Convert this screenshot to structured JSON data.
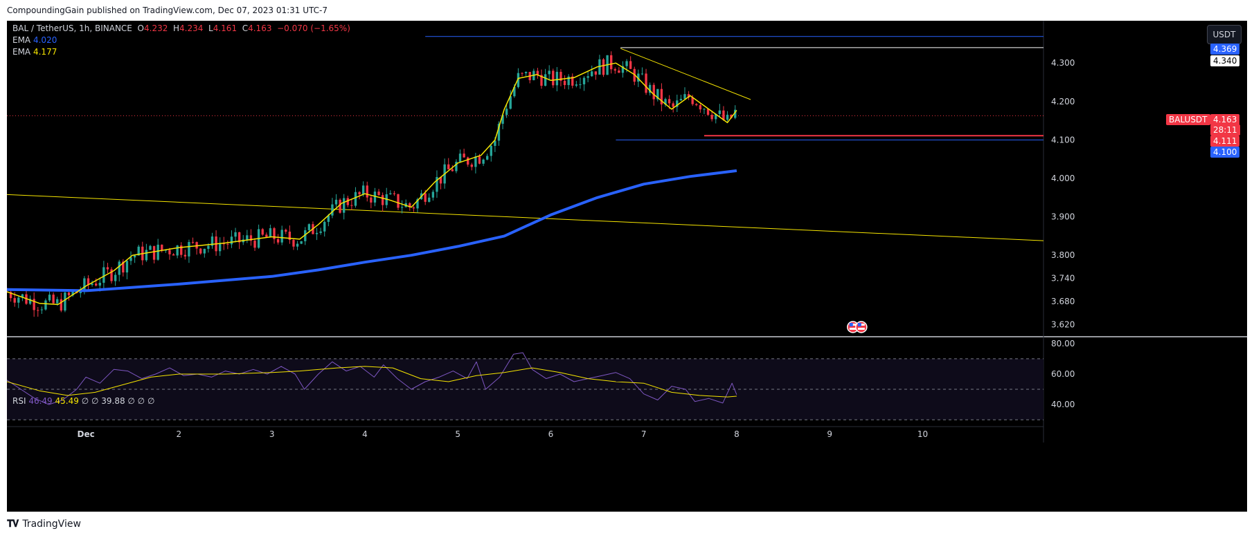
{
  "publisher_line": "CompoundingGain published on TradingView.com, Dec 07, 2023 01:31 UTC-7",
  "legend": {
    "pair": "BAL / TetherUS, 1h, BINANCE",
    "o_label": "O",
    "o": "4.232",
    "h_label": "H",
    "h": "4.234",
    "l_label": "L",
    "l": "4.161",
    "c_label": "C",
    "c": "4.163",
    "change": "−0.070 (−1.65%)",
    "ema1_label": "EMA",
    "ema1": "4.020",
    "ema2_label": "EMA",
    "ema2": "4.177"
  },
  "rsi_legend": {
    "label": "RSI",
    "v1": "46.49",
    "v2": "45.49",
    "rest": "∅ ∅ 39.88 ∅ ∅ ∅"
  },
  "currency_button": "USDT",
  "price_pills": {
    "top": "4.369",
    "white": "4.340",
    "symbol": "BALUSDT",
    "last": "4.163",
    "countdown": "28:11",
    "red_level": "4.111",
    "blue_level": "4.100"
  },
  "colors": {
    "up": "#26a69a",
    "down": "#f23645",
    "ema_fast": "#f7e600",
    "ema_slow": "#2962ff",
    "rsi": "#7e57c2",
    "rsi_ma": "#f7e600",
    "level_blue": "#2962ff",
    "level_red": "#f23645"
  },
  "footer_brand": "TradingView",
  "chart_data": [
    {
      "type": "candlestick",
      "x_ticks": [
        "Dec",
        "2",
        "3",
        "4",
        "5",
        "6",
        "7",
        "8",
        "9",
        "10"
      ],
      "y_ticks": [
        "4.300",
        "4.200",
        "4.100",
        "4.000",
        "3.900",
        "3.800",
        "3.740",
        "3.680",
        "3.620"
      ],
      "y_tick_values": [
        4.3,
        4.2,
        4.1,
        4.0,
        3.9,
        3.8,
        3.74,
        3.68,
        3.62
      ],
      "ylim": [
        3.59,
        4.41
      ],
      "xlim": [
        -0.85,
        10.3
      ],
      "ema_slow": [
        {
          "t": -0.85,
          "v": 3.711
        },
        {
          "t": 0.0,
          "v": 3.708
        },
        {
          "t": 1.0,
          "v": 3.725
        },
        {
          "t": 2.0,
          "v": 3.745
        },
        {
          "t": 2.5,
          "v": 3.762
        },
        {
          "t": 3.0,
          "v": 3.782
        },
        {
          "t": 3.5,
          "v": 3.8
        },
        {
          "t": 4.0,
          "v": 3.823
        },
        {
          "t": 4.5,
          "v": 3.85
        },
        {
          "t": 5.0,
          "v": 3.905
        },
        {
          "t": 5.5,
          "v": 3.95
        },
        {
          "t": 6.0,
          "v": 3.985
        },
        {
          "t": 6.5,
          "v": 4.005
        },
        {
          "t": 7.0,
          "v": 4.02
        }
      ],
      "ema_fast": [
        {
          "t": -0.85,
          "v": 3.705
        },
        {
          "t": -0.5,
          "v": 3.675
        },
        {
          "t": -0.3,
          "v": 3.672
        },
        {
          "t": 0.0,
          "v": 3.72
        },
        {
          "t": 0.3,
          "v": 3.76
        },
        {
          "t": 0.5,
          "v": 3.8
        },
        {
          "t": 1.0,
          "v": 3.82
        },
        {
          "t": 1.5,
          "v": 3.832
        },
        {
          "t": 2.0,
          "v": 3.848
        },
        {
          "t": 2.3,
          "v": 3.842
        },
        {
          "t": 2.5,
          "v": 3.88
        },
        {
          "t": 2.75,
          "v": 3.935
        },
        {
          "t": 3.0,
          "v": 3.96
        },
        {
          "t": 3.25,
          "v": 3.945
        },
        {
          "t": 3.5,
          "v": 3.925
        },
        {
          "t": 3.75,
          "v": 3.99
        },
        {
          "t": 4.0,
          "v": 4.04
        },
        {
          "t": 4.25,
          "v": 4.06
        },
        {
          "t": 4.4,
          "v": 4.1
        },
        {
          "t": 4.5,
          "v": 4.18
        },
        {
          "t": 4.65,
          "v": 4.26
        },
        {
          "t": 4.85,
          "v": 4.27
        },
        {
          "t": 5.0,
          "v": 4.255
        },
        {
          "t": 5.25,
          "v": 4.262
        },
        {
          "t": 5.5,
          "v": 4.29
        },
        {
          "t": 5.7,
          "v": 4.3
        },
        {
          "t": 5.9,
          "v": 4.27
        },
        {
          "t": 6.1,
          "v": 4.22
        },
        {
          "t": 6.3,
          "v": 4.18
        },
        {
          "t": 6.5,
          "v": 4.215
        },
        {
          "t": 6.7,
          "v": 4.18
        },
        {
          "t": 6.9,
          "v": 4.145
        },
        {
          "t": 7.0,
          "v": 4.177
        }
      ],
      "levels": [
        {
          "value": 4.369,
          "from_t": 3.65,
          "to_t": 10.3,
          "color": "#2962ff"
        },
        {
          "value": 4.34,
          "from_t": 5.75,
          "to_t": 10.3,
          "color": "#ffffff"
        },
        {
          "value": 4.111,
          "from_t": 6.65,
          "to_t": 10.3,
          "color": "#f23645"
        },
        {
          "value": 4.1,
          "from_t": 5.7,
          "to_t": 10.3,
          "color": "#2962ff"
        }
      ],
      "trendlines": [
        {
          "from": {
            "t": 5.75,
            "v": 4.338
          },
          "to": {
            "t": 7.15,
            "v": 4.205
          },
          "color": "#f7e600"
        },
        {
          "from": {
            "t": -0.85,
            "v": 3.958
          },
          "to": {
            "t": 10.3,
            "v": 3.838
          },
          "color": "#f7e600"
        }
      ],
      "last_price": 4.163
    },
    {
      "type": "line",
      "name": "RSI",
      "y_ticks": [
        "80.00",
        "60.00",
        "40.00"
      ],
      "y_tick_values": [
        80,
        60,
        40
      ],
      "ylim": [
        26,
        84
      ],
      "bands": [
        70,
        50,
        30
      ],
      "rsi": [
        {
          "t": -0.85,
          "v": 56
        },
        {
          "t": -0.7,
          "v": 50
        },
        {
          "t": -0.55,
          "v": 44
        },
        {
          "t": -0.4,
          "v": 40
        },
        {
          "t": -0.25,
          "v": 43
        },
        {
          "t": -0.1,
          "v": 50
        },
        {
          "t": 0.0,
          "v": 58
        },
        {
          "t": 0.15,
          "v": 54
        },
        {
          "t": 0.3,
          "v": 63
        },
        {
          "t": 0.45,
          "v": 62
        },
        {
          "t": 0.6,
          "v": 57
        },
        {
          "t": 0.75,
          "v": 60
        },
        {
          "t": 0.9,
          "v": 64
        },
        {
          "t": 1.05,
          "v": 59
        },
        {
          "t": 1.2,
          "v": 60
        },
        {
          "t": 1.35,
          "v": 58
        },
        {
          "t": 1.5,
          "v": 62
        },
        {
          "t": 1.65,
          "v": 60
        },
        {
          "t": 1.8,
          "v": 63
        },
        {
          "t": 1.95,
          "v": 60
        },
        {
          "t": 2.1,
          "v": 65
        },
        {
          "t": 2.25,
          "v": 60
        },
        {
          "t": 2.35,
          "v": 50
        },
        {
          "t": 2.5,
          "v": 60
        },
        {
          "t": 2.65,
          "v": 68
        },
        {
          "t": 2.8,
          "v": 62
        },
        {
          "t": 2.95,
          "v": 65
        },
        {
          "t": 3.1,
          "v": 58
        },
        {
          "t": 3.2,
          "v": 66
        },
        {
          "t": 3.35,
          "v": 57
        },
        {
          "t": 3.5,
          "v": 50
        },
        {
          "t": 3.65,
          "v": 55
        },
        {
          "t": 3.8,
          "v": 58
        },
        {
          "t": 3.95,
          "v": 62
        },
        {
          "t": 4.1,
          "v": 57
        },
        {
          "t": 4.2,
          "v": 68
        },
        {
          "t": 4.3,
          "v": 50
        },
        {
          "t": 4.45,
          "v": 58
        },
        {
          "t": 4.6,
          "v": 73
        },
        {
          "t": 4.7,
          "v": 74
        },
        {
          "t": 4.8,
          "v": 63
        },
        {
          "t": 4.95,
          "v": 57
        },
        {
          "t": 5.1,
          "v": 60
        },
        {
          "t": 5.25,
          "v": 55
        },
        {
          "t": 5.4,
          "v": 57
        },
        {
          "t": 5.55,
          "v": 59
        },
        {
          "t": 5.7,
          "v": 61
        },
        {
          "t": 5.85,
          "v": 57
        },
        {
          "t": 6.0,
          "v": 47
        },
        {
          "t": 6.15,
          "v": 43
        },
        {
          "t": 6.3,
          "v": 52
        },
        {
          "t": 6.45,
          "v": 50
        },
        {
          "t": 6.55,
          "v": 42
        },
        {
          "t": 6.7,
          "v": 44
        },
        {
          "t": 6.85,
          "v": 41
        },
        {
          "t": 6.95,
          "v": 54
        },
        {
          "t": 7.0,
          "v": 46.49
        }
      ],
      "rsi_ma": [
        {
          "t": -0.85,
          "v": 55
        },
        {
          "t": -0.5,
          "v": 49
        },
        {
          "t": -0.2,
          "v": 46
        },
        {
          "t": 0.1,
          "v": 48
        },
        {
          "t": 0.4,
          "v": 53
        },
        {
          "t": 0.7,
          "v": 58
        },
        {
          "t": 1.0,
          "v": 60
        },
        {
          "t": 1.5,
          "v": 60
        },
        {
          "t": 2.0,
          "v": 61
        },
        {
          "t": 2.3,
          "v": 62
        },
        {
          "t": 2.7,
          "v": 64
        },
        {
          "t": 3.0,
          "v": 65
        },
        {
          "t": 3.3,
          "v": 64
        },
        {
          "t": 3.6,
          "v": 57
        },
        {
          "t": 3.9,
          "v": 55
        },
        {
          "t": 4.2,
          "v": 59
        },
        {
          "t": 4.5,
          "v": 61
        },
        {
          "t": 4.8,
          "v": 64
        },
        {
          "t": 5.1,
          "v": 61
        },
        {
          "t": 5.4,
          "v": 57
        },
        {
          "t": 5.7,
          "v": 55
        },
        {
          "t": 6.0,
          "v": 54
        },
        {
          "t": 6.3,
          "v": 48
        },
        {
          "t": 6.6,
          "v": 46
        },
        {
          "t": 6.9,
          "v": 45
        },
        {
          "t": 7.0,
          "v": 45.49
        }
      ]
    }
  ]
}
